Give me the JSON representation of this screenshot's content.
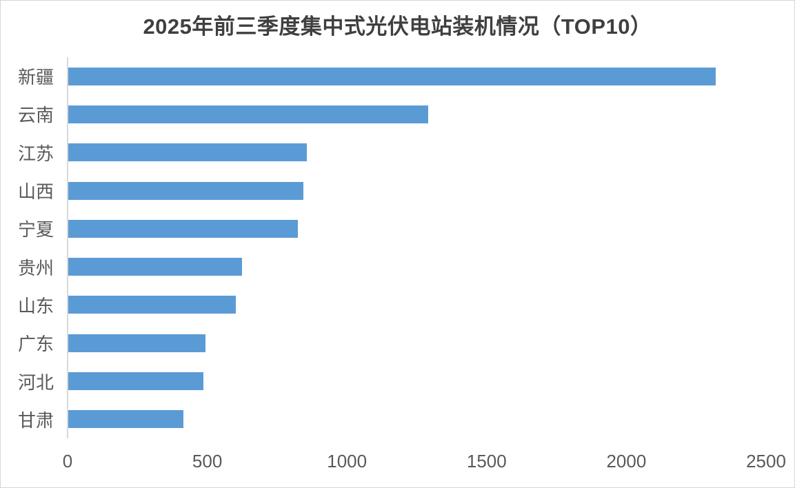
{
  "chart": {
    "colors": {
      "bar": "#5b9bd5",
      "axis_line": "#d9d9d9",
      "title_text": "#3f3f3f",
      "label_text": "#595959",
      "canvas_border": "#d6d6d6",
      "background": "#ffffff"
    }
  },
  "chart_data": {
    "type": "bar",
    "orientation": "horizontal",
    "title": "2025年前三季度集中式光伏电站装机情况（TOP10）",
    "categories": [
      "新疆",
      "云南",
      "江苏",
      "山西",
      "宁夏",
      "贵州",
      "山东",
      "广东",
      "河北",
      "甘肃"
    ],
    "values": [
      2320,
      1290,
      857,
      845,
      825,
      625,
      602,
      493,
      486,
      415
    ],
    "xlabel": "",
    "ylabel": "",
    "xlim": [
      0,
      2500
    ],
    "xticks": [
      0,
      500,
      1000,
      1500,
      2000,
      2500
    ],
    "grid": false,
    "legend": false,
    "bars_sorted": "descending-top-to-bottom"
  }
}
